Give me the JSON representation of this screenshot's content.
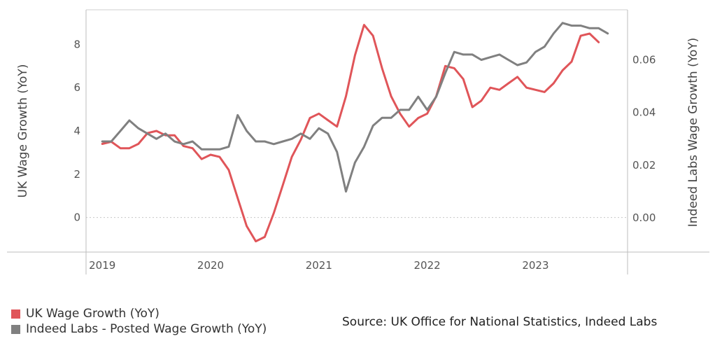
{
  "chart_data": {
    "type": "line",
    "title": "",
    "grid": false,
    "x_ticks": [
      "2019",
      "2020",
      "2021",
      "2022",
      "2023"
    ],
    "y_left": {
      "label": "UK Wage Growth (YoY)",
      "ticks": [
        "0",
        "2",
        "4",
        "6",
        "8"
      ],
      "range": [
        -1.6,
        9.6
      ]
    },
    "y_right": {
      "label": "Indeed Labs Wage Growth (YoY)",
      "ticks": [
        "0.00",
        "0.02",
        "0.04",
        "0.06"
      ],
      "range": [
        -0.013,
        0.079
      ]
    },
    "legend_position": "bottom-left",
    "series": [
      {
        "name": "UK Wage Growth (YoY)",
        "axis": "left",
        "color": "#e05559",
        "x": [
          2019.0,
          2019.083,
          2019.167,
          2019.25,
          2019.333,
          2019.417,
          2019.5,
          2019.583,
          2019.667,
          2019.75,
          2019.833,
          2019.917,
          2020.0,
          2020.083,
          2020.167,
          2020.25,
          2020.333,
          2020.417,
          2020.5,
          2020.583,
          2020.667,
          2020.75,
          2020.833,
          2020.917,
          2021.0,
          2021.083,
          2021.167,
          2021.25,
          2021.333,
          2021.417,
          2021.5,
          2021.583,
          2021.667,
          2021.75,
          2021.833,
          2021.917,
          2022.0,
          2022.083,
          2022.167,
          2022.25,
          2022.333,
          2022.417,
          2022.5,
          2022.583,
          2022.667,
          2022.75,
          2022.833,
          2022.917,
          2023.0,
          2023.083,
          2023.167,
          2023.25,
          2023.333,
          2023.417,
          2023.5,
          2023.583
        ],
        "values": [
          3.4,
          3.5,
          3.2,
          3.2,
          3.4,
          3.9,
          4.0,
          3.8,
          3.8,
          3.3,
          3.2,
          2.7,
          2.9,
          2.8,
          2.2,
          0.9,
          -0.4,
          -1.1,
          -0.9,
          0.2,
          1.5,
          2.8,
          3.6,
          4.6,
          4.8,
          4.5,
          4.2,
          5.6,
          7.5,
          8.9,
          8.4,
          6.9,
          5.6,
          4.8,
          4.2,
          4.6,
          4.8,
          5.6,
          7.0,
          6.9,
          6.4,
          5.1,
          5.4,
          6.0,
          5.9,
          6.2,
          6.5,
          6.0,
          5.9,
          5.8,
          6.2,
          6.8,
          7.2,
          8.4,
          8.5,
          8.1
        ]
      },
      {
        "name": "Indeed Labs - Posted Wage Growth (YoY)",
        "axis": "right",
        "color": "#808080",
        "x": [
          2019.0,
          2019.083,
          2019.167,
          2019.25,
          2019.333,
          2019.417,
          2019.5,
          2019.583,
          2019.667,
          2019.75,
          2019.833,
          2019.917,
          2020.0,
          2020.083,
          2020.167,
          2020.25,
          2020.333,
          2020.417,
          2020.5,
          2020.583,
          2020.667,
          2020.75,
          2020.833,
          2020.917,
          2021.0,
          2021.083,
          2021.167,
          2021.25,
          2021.333,
          2021.417,
          2021.5,
          2021.583,
          2021.667,
          2021.75,
          2021.833,
          2021.917,
          2022.0,
          2022.083,
          2022.167,
          2022.25,
          2022.333,
          2022.417,
          2022.5,
          2022.583,
          2022.667,
          2022.75,
          2022.833,
          2022.917,
          2023.0,
          2023.083,
          2023.167,
          2023.25,
          2023.333,
          2023.417,
          2023.5,
          2023.583,
          2023.667
        ],
        "values": [
          0.029,
          0.029,
          0.033,
          0.037,
          0.034,
          0.032,
          0.03,
          0.032,
          0.029,
          0.028,
          0.029,
          0.026,
          0.026,
          0.026,
          0.027,
          0.039,
          0.033,
          0.029,
          0.029,
          0.028,
          0.029,
          0.03,
          0.032,
          0.03,
          0.034,
          0.032,
          0.025,
          0.01,
          0.021,
          0.027,
          0.035,
          0.038,
          0.038,
          0.041,
          0.041,
          0.046,
          0.041,
          0.046,
          0.055,
          0.063,
          0.062,
          0.062,
          0.06,
          0.061,
          0.062,
          0.06,
          0.058,
          0.059,
          0.063,
          0.065,
          0.07,
          0.074,
          0.073,
          0.073,
          0.072,
          0.072,
          0.07
        ]
      }
    ]
  },
  "source_text": "Source: UK Office for National Statistics, Indeed Labs"
}
